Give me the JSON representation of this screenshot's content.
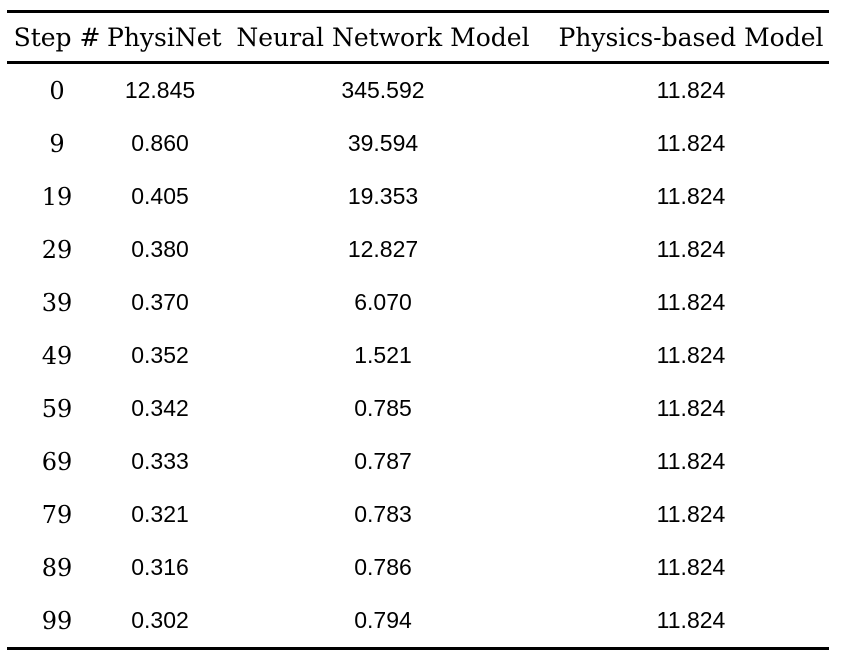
{
  "table": {
    "columns": [
      "Step #",
      "PhysiNet",
      "Neural Network Model",
      "Physics-based Model"
    ],
    "rows": [
      [
        "0",
        "12.845",
        "345.592",
        "11.824"
      ],
      [
        "9",
        "0.860",
        "39.594",
        "11.824"
      ],
      [
        "19",
        "0.405",
        "19.353",
        "11.824"
      ],
      [
        "29",
        "0.380",
        "12.827",
        "11.824"
      ],
      [
        "39",
        "0.370",
        "6.070",
        "11.824"
      ],
      [
        "49",
        "0.352",
        "1.521",
        "11.824"
      ],
      [
        "59",
        "0.342",
        "0.785",
        "11.824"
      ],
      [
        "69",
        "0.333",
        "0.787",
        "11.824"
      ],
      [
        "79",
        "0.321",
        "0.783",
        "11.824"
      ],
      [
        "89",
        "0.316",
        "0.786",
        "11.824"
      ],
      [
        "99",
        "0.302",
        "0.794",
        "11.824"
      ]
    ],
    "colors": {
      "text": "#000000",
      "rule": "#000000",
      "background": "#ffffff"
    }
  },
  "chart_data": {
    "type": "table",
    "title": "",
    "categories": [
      0,
      9,
      19,
      29,
      39,
      49,
      59,
      69,
      79,
      89,
      99
    ],
    "series": [
      {
        "name": "PhysiNet",
        "values": [
          12.845,
          0.86,
          0.405,
          0.38,
          0.37,
          0.352,
          0.342,
          0.333,
          0.321,
          0.316,
          0.302
        ]
      },
      {
        "name": "Neural Network Model",
        "values": [
          345.592,
          39.594,
          19.353,
          12.827,
          6.07,
          1.521,
          0.785,
          0.787,
          0.783,
          0.786,
          0.794
        ]
      },
      {
        "name": "Physics-based Model",
        "values": [
          11.824,
          11.824,
          11.824,
          11.824,
          11.824,
          11.824,
          11.824,
          11.824,
          11.824,
          11.824,
          11.824
        ]
      }
    ],
    "xlabel": "Step #"
  }
}
